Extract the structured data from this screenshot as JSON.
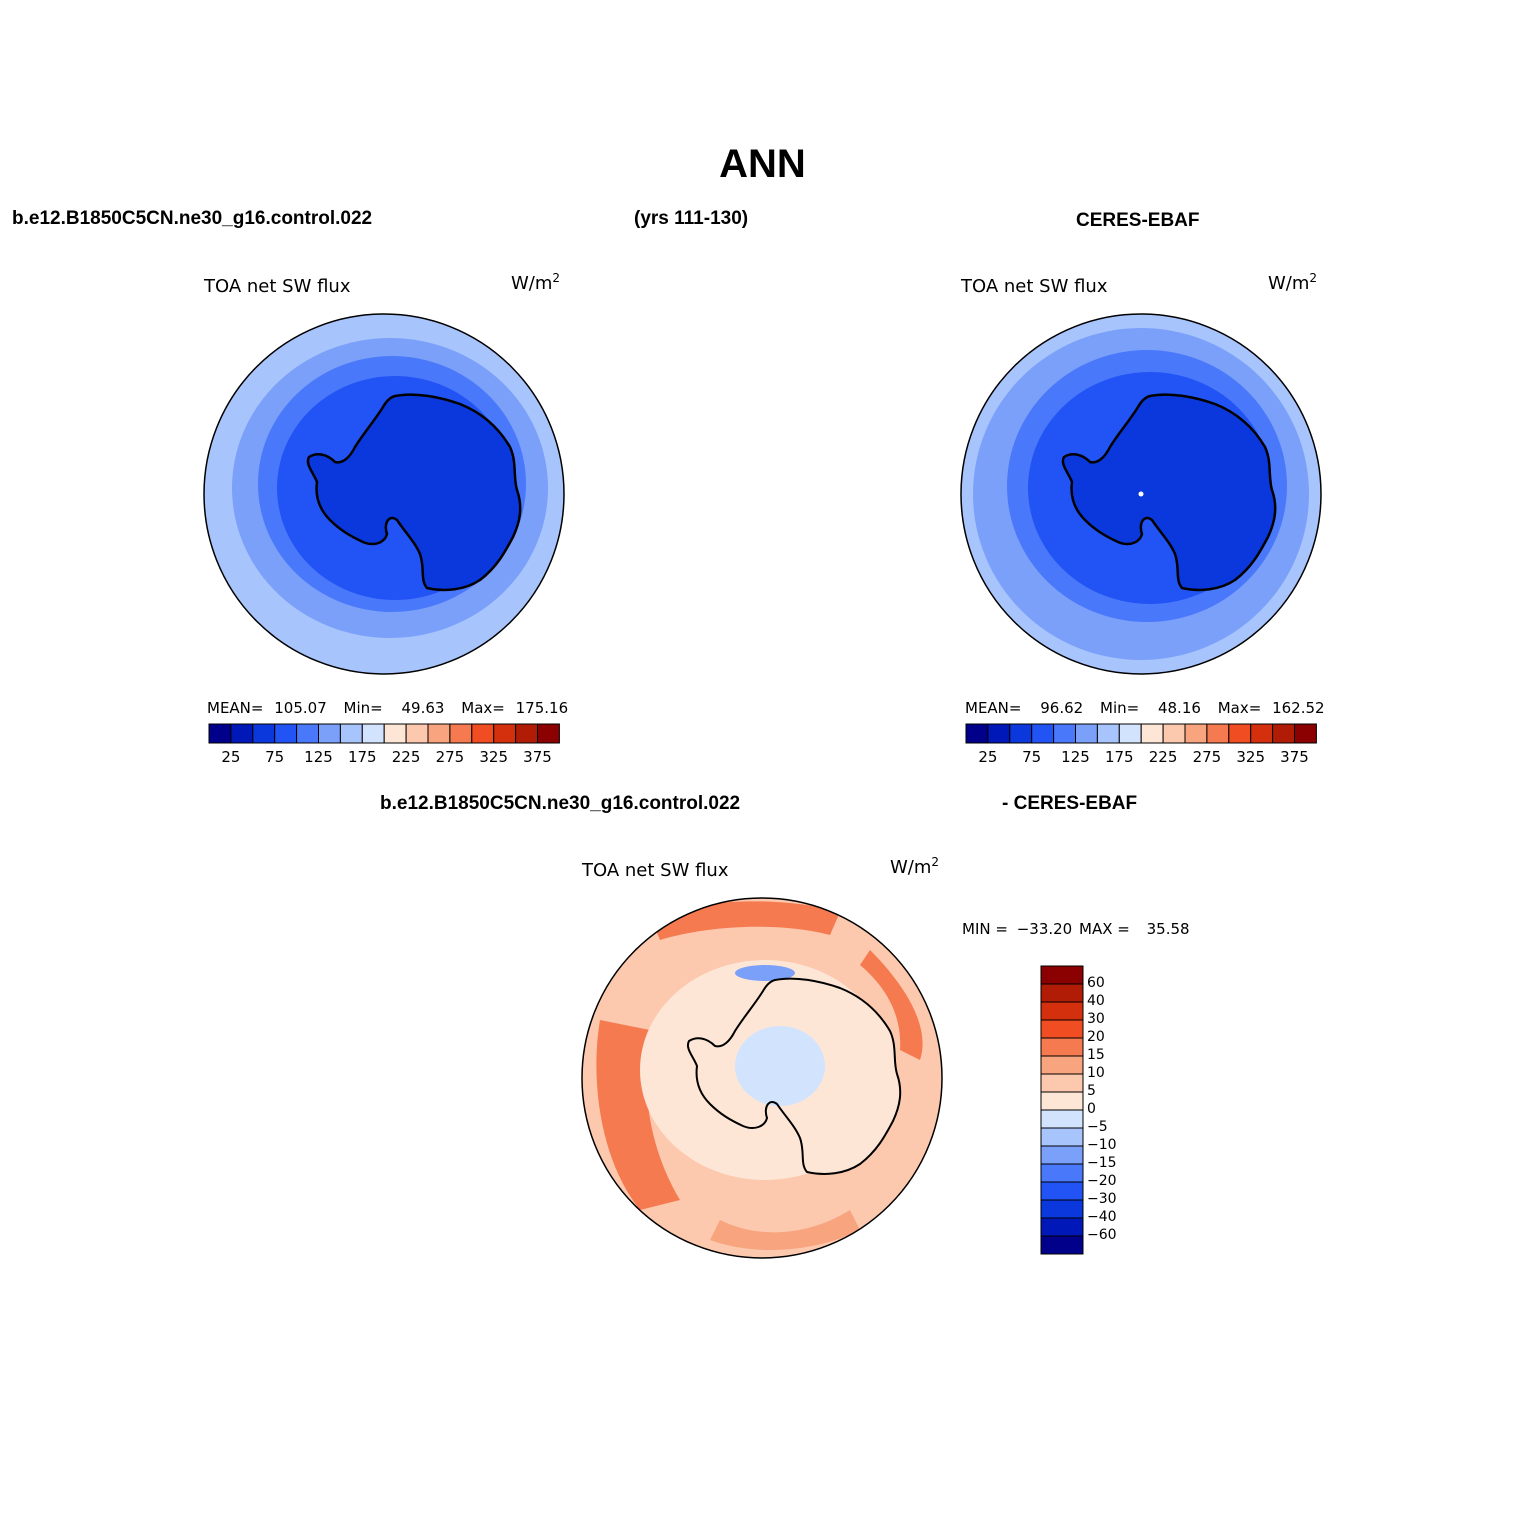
{
  "page": {
    "title": "ANN",
    "header_left": "b.e12.B1850C5CN.ne30_g16.control.022",
    "header_mid": "(yrs 111-130)",
    "header_right": "CERES-EBAF",
    "diff_label_left": "b.e12.B1850C5CN.ne30_g16.control.022",
    "diff_label_right": "- CERES-EBAF"
  },
  "panels": {
    "model": {
      "title": "TOA net SW flux",
      "units_base": "W/m",
      "units_exp": "2",
      "stats": {
        "mean_label": "MEAN=",
        "mean": "105.07",
        "min_label": "Min=",
        "min": "49.63",
        "max_label": "Max=",
        "max": "175.16"
      }
    },
    "obs": {
      "title": "TOA net SW flux",
      "units_base": "W/m",
      "units_exp": "2",
      "stats": {
        "mean_label": "MEAN=",
        "mean": "96.62",
        "min_label": "Min=",
        "min": "48.16",
        "max_label": "Max=",
        "max": "162.52"
      }
    },
    "diff": {
      "title": "TOA net SW flux",
      "units_base": "W/m",
      "units_exp": "2",
      "stats": {
        "min_label": "MIN =",
        "min": "−33.20",
        "max_label": "MAX =",
        "max": "35.58"
      }
    }
  },
  "colorbar_abs": {
    "colors": [
      "#00008b",
      "#0018b8",
      "#0a38dc",
      "#2254f5",
      "#4a78fa",
      "#7aa0fa",
      "#a8c4fc",
      "#d2e4fd",
      "#fde6d6",
      "#fcc8ae",
      "#f8a47e",
      "#f57a50",
      "#f04e22",
      "#d4300e",
      "#b01c06",
      "#8b0000"
    ],
    "tick_labels": [
      "25",
      "75",
      "125",
      "175",
      "225",
      "275",
      "325",
      "375"
    ]
  },
  "colorbar_diff": {
    "colors": [
      "#8b0000",
      "#b01c06",
      "#d4300e",
      "#f04e22",
      "#f57a50",
      "#f8a47e",
      "#fcc8ae",
      "#fde6d6",
      "#d2e4fd",
      "#a8c4fc",
      "#7aa0fa",
      "#4a78fa",
      "#2254f5",
      "#0a38dc",
      "#0018b8",
      "#00008b"
    ],
    "tick_labels": [
      "60",
      "40",
      "30",
      "20",
      "15",
      "10",
      "5",
      "0",
      "−5",
      "−10",
      "−15",
      "−20",
      "−30",
      "−40",
      "−60"
    ]
  },
  "map_colors": {
    "abs_ring_outer": "#a8c4fc",
    "abs_ring_2": "#7aa0fa",
    "abs_ring_3": "#4a78fa",
    "abs_ring_4": "#2254f5",
    "abs_core": "#0a38dc",
    "diff_base": "#fcc8ae",
    "diff_warm": "#f57a50",
    "diff_mid": "#f8a47e",
    "diff_pale": "#fde6d6",
    "diff_cool": "#d2e4fd",
    "diff_blue": "#7aa0fa",
    "coast": "#000000"
  }
}
